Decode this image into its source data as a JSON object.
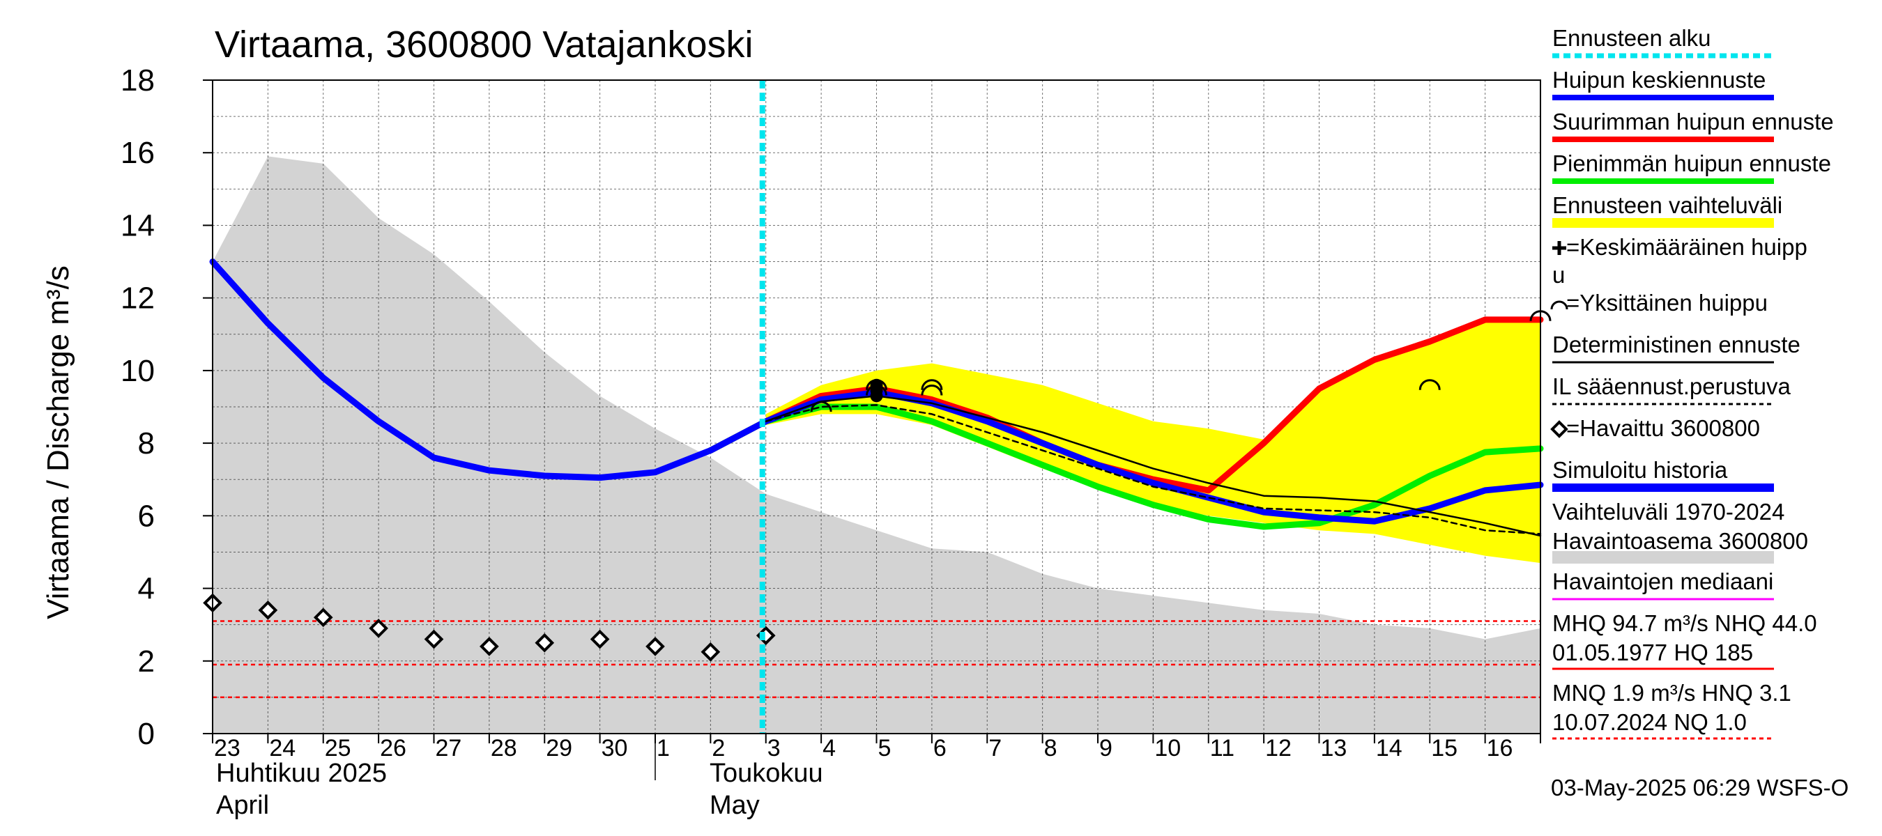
{
  "chart_data": {
    "type": "line",
    "title": "Virtaama, 3600800 Vatajankoski",
    "ylabel": "Virtaama / Discharge    m³/s",
    "ylim": [
      0,
      18
    ],
    "yticks": [
      "0",
      "2",
      "4",
      "6",
      "8",
      "10",
      "12",
      "14",
      "16",
      "18"
    ],
    "xlim": [
      0,
      24
    ],
    "grid": true,
    "x_day_labels": [
      {
        "x": 0,
        "label": "23"
      },
      {
        "x": 1,
        "label": "24"
      },
      {
        "x": 2,
        "label": "25"
      },
      {
        "x": 3,
        "label": "26"
      },
      {
        "x": 4,
        "label": "27"
      },
      {
        "x": 5,
        "label": "28"
      },
      {
        "x": 6,
        "label": "29"
      },
      {
        "x": 7,
        "label": "30"
      },
      {
        "x": 8,
        "label": "1"
      },
      {
        "x": 9,
        "label": "2"
      },
      {
        "x": 10,
        "label": "3"
      },
      {
        "x": 11,
        "label": "4"
      },
      {
        "x": 12,
        "label": "5"
      },
      {
        "x": 13,
        "label": "6"
      },
      {
        "x": 14,
        "label": "7"
      },
      {
        "x": 15,
        "label": "8"
      },
      {
        "x": 16,
        "label": "9"
      },
      {
        "x": 17,
        "label": "10"
      },
      {
        "x": 18,
        "label": "11"
      },
      {
        "x": 19,
        "label": "12"
      },
      {
        "x": 20,
        "label": "13"
      },
      {
        "x": 21,
        "label": "14"
      },
      {
        "x": 22,
        "label": "15"
      },
      {
        "x": 23,
        "label": "16"
      }
    ],
    "month_labels": {
      "april_fi": "Huhtikuu  2025",
      "april_en": "April",
      "may_fi": "Toukokuu",
      "may_en": "May"
    },
    "forecast_start_x": 10,
    "history_band": {
      "upper": [
        [
          0,
          13.0
        ],
        [
          1,
          15.9
        ],
        [
          2,
          15.7
        ],
        [
          3,
          14.2
        ],
        [
          4,
          13.2
        ],
        [
          5,
          11.9
        ],
        [
          6,
          10.5
        ],
        [
          7,
          9.3
        ],
        [
          8,
          8.4
        ],
        [
          9,
          7.6
        ],
        [
          10,
          6.6
        ],
        [
          11,
          6.1
        ],
        [
          12,
          5.6
        ],
        [
          13,
          5.1
        ],
        [
          14,
          5.0
        ],
        [
          15,
          4.4
        ],
        [
          16,
          4.0
        ],
        [
          17,
          3.8
        ],
        [
          18,
          3.6
        ],
        [
          19,
          3.4
        ],
        [
          20,
          3.3
        ],
        [
          21,
          3.0
        ],
        [
          22,
          2.9
        ],
        [
          23,
          2.6
        ],
        [
          24,
          2.9
        ]
      ],
      "lower": [
        [
          0,
          0
        ],
        [
          24,
          0
        ]
      ],
      "color": "#d3d3d3"
    },
    "forecast_band": {
      "upper": [
        [
          10,
          8.8
        ],
        [
          11,
          9.6
        ],
        [
          12,
          10.0
        ],
        [
          13,
          10.2
        ],
        [
          14,
          9.9
        ],
        [
          15,
          9.6
        ],
        [
          16,
          9.1
        ],
        [
          17,
          8.6
        ],
        [
          18,
          8.4
        ],
        [
          19,
          8.1
        ],
        [
          20,
          9.5
        ],
        [
          21,
          10.3
        ],
        [
          22,
          10.8
        ],
        [
          23,
          11.4
        ],
        [
          24,
          11.4
        ]
      ],
      "lower": [
        [
          10,
          8.5
        ],
        [
          11,
          8.8
        ],
        [
          12,
          8.8
        ],
        [
          13,
          8.5
        ],
        [
          14,
          7.9
        ],
        [
          15,
          7.3
        ],
        [
          16,
          6.8
        ],
        [
          17,
          6.3
        ],
        [
          18,
          6.0
        ],
        [
          19,
          5.8
        ],
        [
          20,
          5.6
        ],
        [
          21,
          5.5
        ],
        [
          22,
          5.2
        ],
        [
          23,
          4.9
        ],
        [
          24,
          4.7
        ]
      ],
      "color": "#ffff00"
    },
    "series": [
      {
        "name": "Simuloitu historia",
        "color": "#0000ff",
        "width": 9,
        "points": [
          [
            0,
            13.0
          ],
          [
            1,
            11.3
          ],
          [
            2,
            9.8
          ],
          [
            3,
            8.6
          ],
          [
            4,
            7.6
          ],
          [
            5,
            7.25
          ],
          [
            6,
            7.1
          ],
          [
            7,
            7.05
          ],
          [
            8,
            7.2
          ],
          [
            9,
            7.8
          ]
        ]
      },
      {
        "name": "Suurimman huipun ennuste",
        "color": "#ff0000",
        "width": 9,
        "points": [
          [
            9,
            7.8
          ],
          [
            10,
            8.6
          ],
          [
            11,
            9.3
          ],
          [
            12,
            9.5
          ],
          [
            13,
            9.2
          ],
          [
            14,
            8.7
          ],
          [
            15,
            8.0
          ],
          [
            16,
            7.4
          ],
          [
            17,
            7.0
          ],
          [
            18,
            6.7
          ],
          [
            19,
            8.0
          ],
          [
            20,
            9.5
          ],
          [
            21,
            10.3
          ],
          [
            22,
            10.8
          ],
          [
            23,
            11.4
          ],
          [
            24,
            11.4
          ]
        ]
      },
      {
        "name": "Pienimmän huipun ennuste",
        "color": "#00ee00",
        "width": 9,
        "points": [
          [
            9,
            7.8
          ],
          [
            10,
            8.6
          ],
          [
            11,
            9.0
          ],
          [
            12,
            9.0
          ],
          [
            13,
            8.6
          ],
          [
            14,
            8.0
          ],
          [
            15,
            7.4
          ],
          [
            16,
            6.8
          ],
          [
            17,
            6.3
          ],
          [
            18,
            5.9
          ],
          [
            19,
            5.7
          ],
          [
            20,
            5.8
          ],
          [
            21,
            6.3
          ],
          [
            22,
            7.1
          ],
          [
            23,
            7.75
          ],
          [
            24,
            7.85
          ]
        ]
      },
      {
        "name": "Huipun keskiennuste",
        "color": "#0000ff",
        "width": 9,
        "points": [
          [
            9,
            7.8
          ],
          [
            10,
            8.6
          ],
          [
            11,
            9.2
          ],
          [
            12,
            9.4
          ],
          [
            13,
            9.1
          ],
          [
            14,
            8.6
          ],
          [
            15,
            8.0
          ],
          [
            16,
            7.4
          ],
          [
            17,
            6.9
          ],
          [
            18,
            6.5
          ],
          [
            19,
            6.1
          ],
          [
            20,
            5.95
          ],
          [
            21,
            5.85
          ],
          [
            22,
            6.2
          ],
          [
            23,
            6.7
          ],
          [
            24,
            6.85
          ]
        ]
      },
      {
        "name": "Deterministinen ennuste",
        "color": "#000000",
        "width": 2.5,
        "points": [
          [
            10,
            8.6
          ],
          [
            11,
            9.15
          ],
          [
            12,
            9.3
          ],
          [
            13,
            9.1
          ],
          [
            14,
            8.7
          ],
          [
            15,
            8.3
          ],
          [
            16,
            7.8
          ],
          [
            17,
            7.3
          ],
          [
            18,
            6.9
          ],
          [
            19,
            6.55
          ],
          [
            20,
            6.5
          ],
          [
            21,
            6.4
          ],
          [
            22,
            6.1
          ],
          [
            23,
            5.8
          ],
          [
            24,
            5.45
          ]
        ]
      },
      {
        "name": "IL sääennust.perustuva",
        "color": "#000000",
        "width": 2.5,
        "dash": "8,6",
        "points": [
          [
            10,
            8.6
          ],
          [
            11,
            9.0
          ],
          [
            12,
            9.05
          ],
          [
            13,
            8.8
          ],
          [
            14,
            8.3
          ],
          [
            15,
            7.8
          ],
          [
            16,
            7.3
          ],
          [
            17,
            6.8
          ],
          [
            18,
            6.5
          ],
          [
            19,
            6.2
          ],
          [
            20,
            6.15
          ],
          [
            21,
            6.1
          ],
          [
            22,
            5.95
          ],
          [
            23,
            5.6
          ],
          [
            24,
            5.5
          ]
        ]
      }
    ],
    "observed": {
      "name": "Havaittu 3600800",
      "points": [
        [
          0,
          3.6
        ],
        [
          1,
          3.4
        ],
        [
          2,
          3.2
        ],
        [
          3,
          2.9
        ],
        [
          4,
          2.6
        ],
        [
          5,
          2.4
        ],
        [
          6,
          2.5
        ],
        [
          7,
          2.6
        ],
        [
          8,
          2.4
        ],
        [
          9,
          2.25
        ],
        [
          10,
          2.7
        ]
      ]
    },
    "single_peaks": [
      [
        11,
        9.0
      ],
      [
        12,
        9.45
      ],
      [
        12,
        9.6
      ],
      [
        13,
        9.45
      ],
      [
        13,
        9.6
      ],
      [
        22,
        9.6
      ],
      [
        24,
        11.5
      ]
    ],
    "mean_peak_marks": [
      [
        12,
        9.3
      ],
      [
        12,
        9.45
      ],
      [
        12,
        9.6
      ]
    ],
    "reference_lines": [
      {
        "y": 3.1,
        "label": "HNQ",
        "color": "#ff0000",
        "dash": "6,5"
      },
      {
        "y": 1.9,
        "label": "MNQ",
        "color": "#ff0000",
        "dash": "6,5"
      },
      {
        "y": 1.0,
        "label": "NQ",
        "color": "#ff0000",
        "dash": "6,5"
      }
    ]
  },
  "legend": {
    "items": [
      {
        "label": "Ennusteen alku",
        "kind": "line",
        "color": "#00e5ee",
        "dash": "10,6",
        "width": 7
      },
      {
        "label": "Huipun keskiennuste",
        "kind": "line",
        "color": "#0000ff",
        "width": 8
      },
      {
        "label": "Suurimman huipun ennuste",
        "kind": "line",
        "color": "#ff0000",
        "width": 8
      },
      {
        "label": "Pienimmän huipun ennuste",
        "kind": "line",
        "color": "#00ee00",
        "width": 8
      },
      {
        "label": "Ennusteen vaihteluväli",
        "kind": "line",
        "color": "#ffff00",
        "width": 14
      },
      {
        "label": "=Keskimääräinen huipp",
        "label2": "u",
        "kind": "plus-marker"
      },
      {
        "label": "=Yksittäinen huippu",
        "kind": "arc-marker"
      },
      {
        "label": "Deterministinen ennuste",
        "kind": "line",
        "color": "#000000",
        "width": 3
      },
      {
        "label": "IL sääennust.perustuva",
        "kind": "line",
        "color": "#000000",
        "width": 3,
        "dash": "6,5"
      },
      {
        "label": "=Havaittu 3600800",
        "kind": "diamond-marker"
      },
      {
        "label": "Simuloitu historia",
        "kind": "line",
        "color": "#0000ff",
        "width": 12
      },
      {
        "label": "Vaihteluväli 1970-2024",
        "label2": " Havaintoasema 3600800",
        "kind": "line",
        "color": "#d3d3d3",
        "width": 18
      },
      {
        "label": "Havaintojen mediaani",
        "kind": "line",
        "color": "#ff00ff",
        "width": 3
      },
      {
        "label": "MHQ 94.7 m³/s NHQ 44.0",
        "label2": "01.05.1977 HQ  185",
        "kind": "line",
        "color": "#ff0000",
        "width": 3
      },
      {
        "label": "MNQ  1.9 m³/s HNQ  3.1",
        "label2": "10.07.2024 NQ  1.0",
        "kind": "line",
        "color": "#ff0000",
        "width": 3,
        "dash": "6,5"
      }
    ]
  },
  "footer": {
    "timestamp": "03-May-2025 06:29 WSFS-O"
  }
}
